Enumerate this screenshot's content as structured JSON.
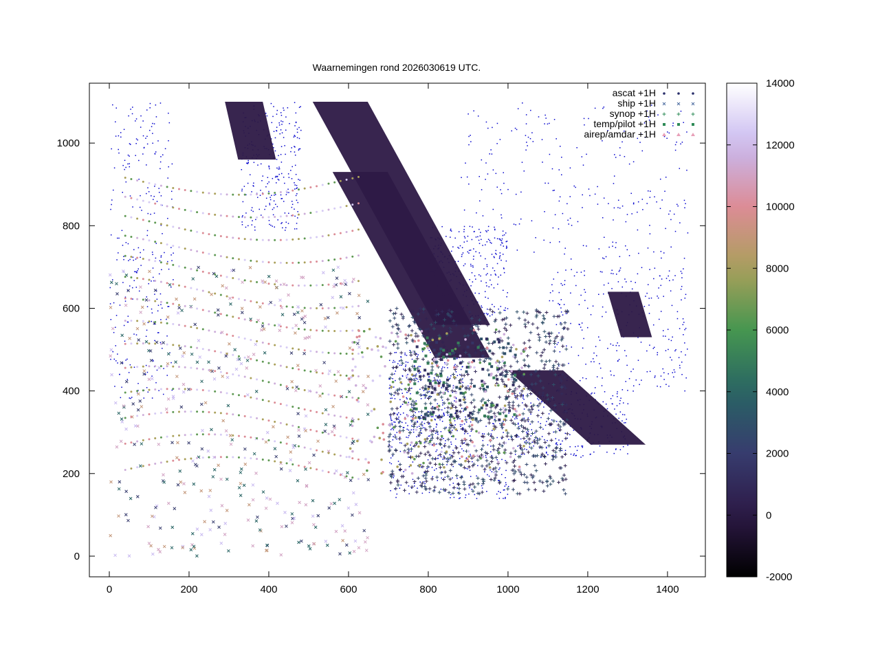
{
  "chart_data": {
    "type": "scatter",
    "title": "Waarnemingen rond 2026030619 UTC.",
    "xlabel": "",
    "ylabel": "",
    "xlim": [
      -50,
      1495
    ],
    "ylim": [
      -50,
      1145
    ],
    "x_ticks": [
      "0",
      "200",
      "400",
      "600",
      "800",
      "1000",
      "1200",
      "1400"
    ],
    "y_ticks": [
      "0",
      "200",
      "400",
      "600",
      "800",
      "1000"
    ],
    "x_tick_values": [
      0,
      200,
      400,
      600,
      800,
      1000,
      1200,
      1400
    ],
    "y_tick_values": [
      0,
      200,
      400,
      600,
      800,
      1000
    ],
    "colorbar": {
      "range": [
        -2000,
        14000
      ],
      "ticks": [
        "-2000",
        "0",
        "2000",
        "4000",
        "6000",
        "8000",
        "10000",
        "12000",
        "14000"
      ],
      "tick_values": [
        -2000,
        0,
        2000,
        4000,
        6000,
        8000,
        10000,
        12000,
        14000
      ]
    },
    "legend": {
      "position": "top-right",
      "entries": [
        {
          "label": "ascat +1H",
          "marker": "dot",
          "color": "#2a2f6b"
        },
        {
          "label": "ship +1H",
          "marker": "x",
          "color": "#4a6ba0"
        },
        {
          "label": "synop +1H",
          "marker": "plus",
          "color": "#2e8b57"
        },
        {
          "label": "temp/pilot +1H",
          "marker": "square",
          "color": "#2e8b57"
        },
        {
          "label": "airep/amdar +1H",
          "marker": "triangle",
          "color": "#e8a0b8"
        }
      ]
    },
    "series": [
      {
        "name": "ascat +1H",
        "swaths": [
          {
            "x": [
              290,
              380
            ],
            "y": [
              1100,
              960
            ]
          },
          {
            "x": [
              510,
              900
            ],
            "y": [
              1100,
              560
            ]
          },
          {
            "x": [
              560,
              900
            ],
            "y": [
              930,
              480
            ]
          },
          {
            "x": [
              1000,
              1290
            ],
            "y": [
              450,
              270
            ]
          },
          {
            "x": [
              1250,
              1330
            ],
            "y": [
              640,
              530
            ]
          }
        ],
        "value": 0
      },
      {
        "name": "ship +1H",
        "sample_values": [
          9000,
          11000,
          4000,
          2000,
          12000
        ]
      },
      {
        "name": "synop +1H",
        "sample_values": [
          1000,
          3000,
          500,
          2500
        ]
      },
      {
        "name": "temp/pilot +1H",
        "sample_values": [
          1500,
          3000,
          5000
        ]
      },
      {
        "name": "airep/amdar +1H",
        "sample_values": [
          8000,
          10000,
          11500,
          12500,
          6500
        ]
      }
    ],
    "coastline_color": "#0000cc",
    "grid": false
  }
}
